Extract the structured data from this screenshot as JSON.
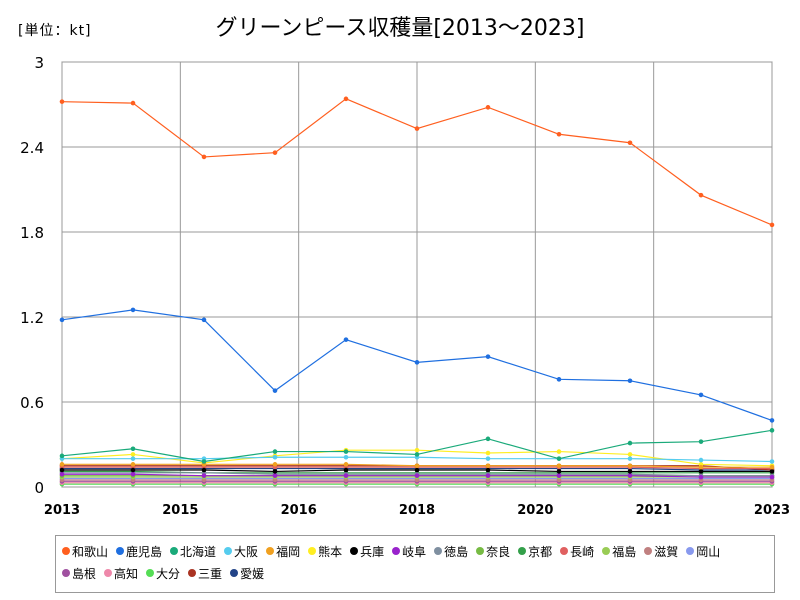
{
  "chart_data": {
    "type": "line",
    "title": "グリーンピース収穫量[2013～2023]",
    "unit_label": "[単位：kt]",
    "x_tick_labels": [
      "2013",
      "2015",
      "2016",
      "2018",
      "2020",
      "2021",
      "2023"
    ],
    "ylim": [
      0,
      3
    ],
    "y_ticks": [
      0,
      0.6,
      1.2,
      1.8,
      2.4,
      3
    ],
    "y_tick_labels": [
      "0",
      "0.6",
      "1.2",
      "1.8",
      "2.4",
      "3"
    ],
    "x_range": [
      2013,
      2023
    ],
    "grid": true,
    "legend_position": "bottom",
    "x": [
      2013,
      2014,
      2015,
      2016,
      2017,
      2018,
      2019,
      2020,
      2021,
      2022,
      2023
    ],
    "series": [
      {
        "name": "和歌山",
        "color": "#ff5f1f",
        "values": [
          2.72,
          2.71,
          2.33,
          2.36,
          2.74,
          2.53,
          2.68,
          2.49,
          2.43,
          2.06,
          1.85
        ]
      },
      {
        "name": "鹿児島",
        "color": "#1f6fe0",
        "values": [
          1.18,
          1.25,
          1.18,
          0.68,
          1.04,
          0.88,
          0.92,
          0.76,
          0.75,
          0.65,
          0.47
        ]
      },
      {
        "name": "北海道",
        "color": "#1aaa7a",
        "values": [
          0.22,
          0.27,
          0.18,
          0.25,
          0.25,
          0.23,
          0.34,
          0.2,
          0.31,
          0.32,
          0.4
        ]
      },
      {
        "name": "大阪",
        "color": "#55ccee",
        "values": [
          0.2,
          0.2,
          0.2,
          0.21,
          0.21,
          0.21,
          0.2,
          0.2,
          0.2,
          0.19,
          0.18
        ]
      },
      {
        "name": "福岡",
        "color": "#f0a020",
        "values": [
          0.16,
          0.16,
          0.16,
          0.16,
          0.16,
          0.15,
          0.15,
          0.15,
          0.15,
          0.14,
          0.14
        ]
      },
      {
        "name": "熊本",
        "color": "#ffee22",
        "values": [
          0.2,
          0.23,
          0.17,
          0.22,
          0.26,
          0.26,
          0.24,
          0.25,
          0.23,
          0.16,
          0.15
        ]
      },
      {
        "name": "兵庫",
        "color": "#000000",
        "values": [
          0.12,
          0.12,
          0.12,
          0.11,
          0.12,
          0.12,
          0.12,
          0.11,
          0.11,
          0.11,
          0.11
        ]
      },
      {
        "name": "岐阜",
        "color": "#9922cc",
        "values": [
          0.09,
          0.09,
          0.08,
          0.08,
          0.08,
          0.08,
          0.08,
          0.08,
          0.08,
          0.07,
          0.07
        ]
      },
      {
        "name": "徳島",
        "color": "#7f8fa0",
        "values": [
          0.1,
          0.1,
          0.1,
          0.09,
          0.09,
          0.09,
          0.09,
          0.09,
          0.09,
          0.08,
          0.08
        ]
      },
      {
        "name": "奈良",
        "color": "#77bb44",
        "values": [
          0.08,
          0.08,
          0.08,
          0.08,
          0.08,
          0.08,
          0.08,
          0.08,
          0.08,
          0.08,
          0.08
        ]
      },
      {
        "name": "京都",
        "color": "#33a04a",
        "values": [
          0.11,
          0.11,
          0.1,
          0.1,
          0.1,
          0.1,
          0.1,
          0.1,
          0.1,
          0.1,
          0.1
        ]
      },
      {
        "name": "長崎",
        "color": "#e06060",
        "values": [
          0.14,
          0.14,
          0.14,
          0.14,
          0.14,
          0.14,
          0.14,
          0.14,
          0.14,
          0.13,
          0.13
        ]
      },
      {
        "name": "福島",
        "color": "#99cc55",
        "values": [
          0.07,
          0.07,
          0.07,
          0.07,
          0.07,
          0.07,
          0.07,
          0.07,
          0.07,
          0.07,
          0.07
        ]
      },
      {
        "name": "滋賀",
        "color": "#c08080",
        "values": [
          0.05,
          0.05,
          0.05,
          0.05,
          0.05,
          0.05,
          0.05,
          0.05,
          0.05,
          0.05,
          0.05
        ]
      },
      {
        "name": "岡山",
        "color": "#8899ee",
        "values": [
          0.06,
          0.06,
          0.06,
          0.06,
          0.06,
          0.06,
          0.06,
          0.06,
          0.06,
          0.06,
          0.06
        ]
      },
      {
        "name": "島根",
        "color": "#a050a0",
        "values": [
          0.04,
          0.04,
          0.04,
          0.04,
          0.04,
          0.04,
          0.04,
          0.04,
          0.04,
          0.04,
          0.04
        ]
      },
      {
        "name": "高知",
        "color": "#ee88aa",
        "values": [
          0.03,
          0.03,
          0.03,
          0.03,
          0.03,
          0.03,
          0.03,
          0.03,
          0.03,
          0.03,
          0.03
        ]
      },
      {
        "name": "大分",
        "color": "#55dd55",
        "values": [
          0.02,
          0.02,
          0.02,
          0.02,
          0.02,
          0.02,
          0.02,
          0.02,
          0.02,
          0.02,
          0.02
        ]
      },
      {
        "name": "三重",
        "color": "#aa3322",
        "values": [
          0.15,
          0.15,
          0.15,
          0.15,
          0.15,
          0.15,
          0.15,
          0.15,
          0.15,
          0.15,
          0.12
        ]
      },
      {
        "name": "愛媛",
        "color": "#224488",
        "values": [
          0.13,
          0.13,
          0.13,
          0.13,
          0.13,
          0.13,
          0.13,
          0.13,
          0.13,
          0.12,
          0.12
        ]
      }
    ]
  }
}
